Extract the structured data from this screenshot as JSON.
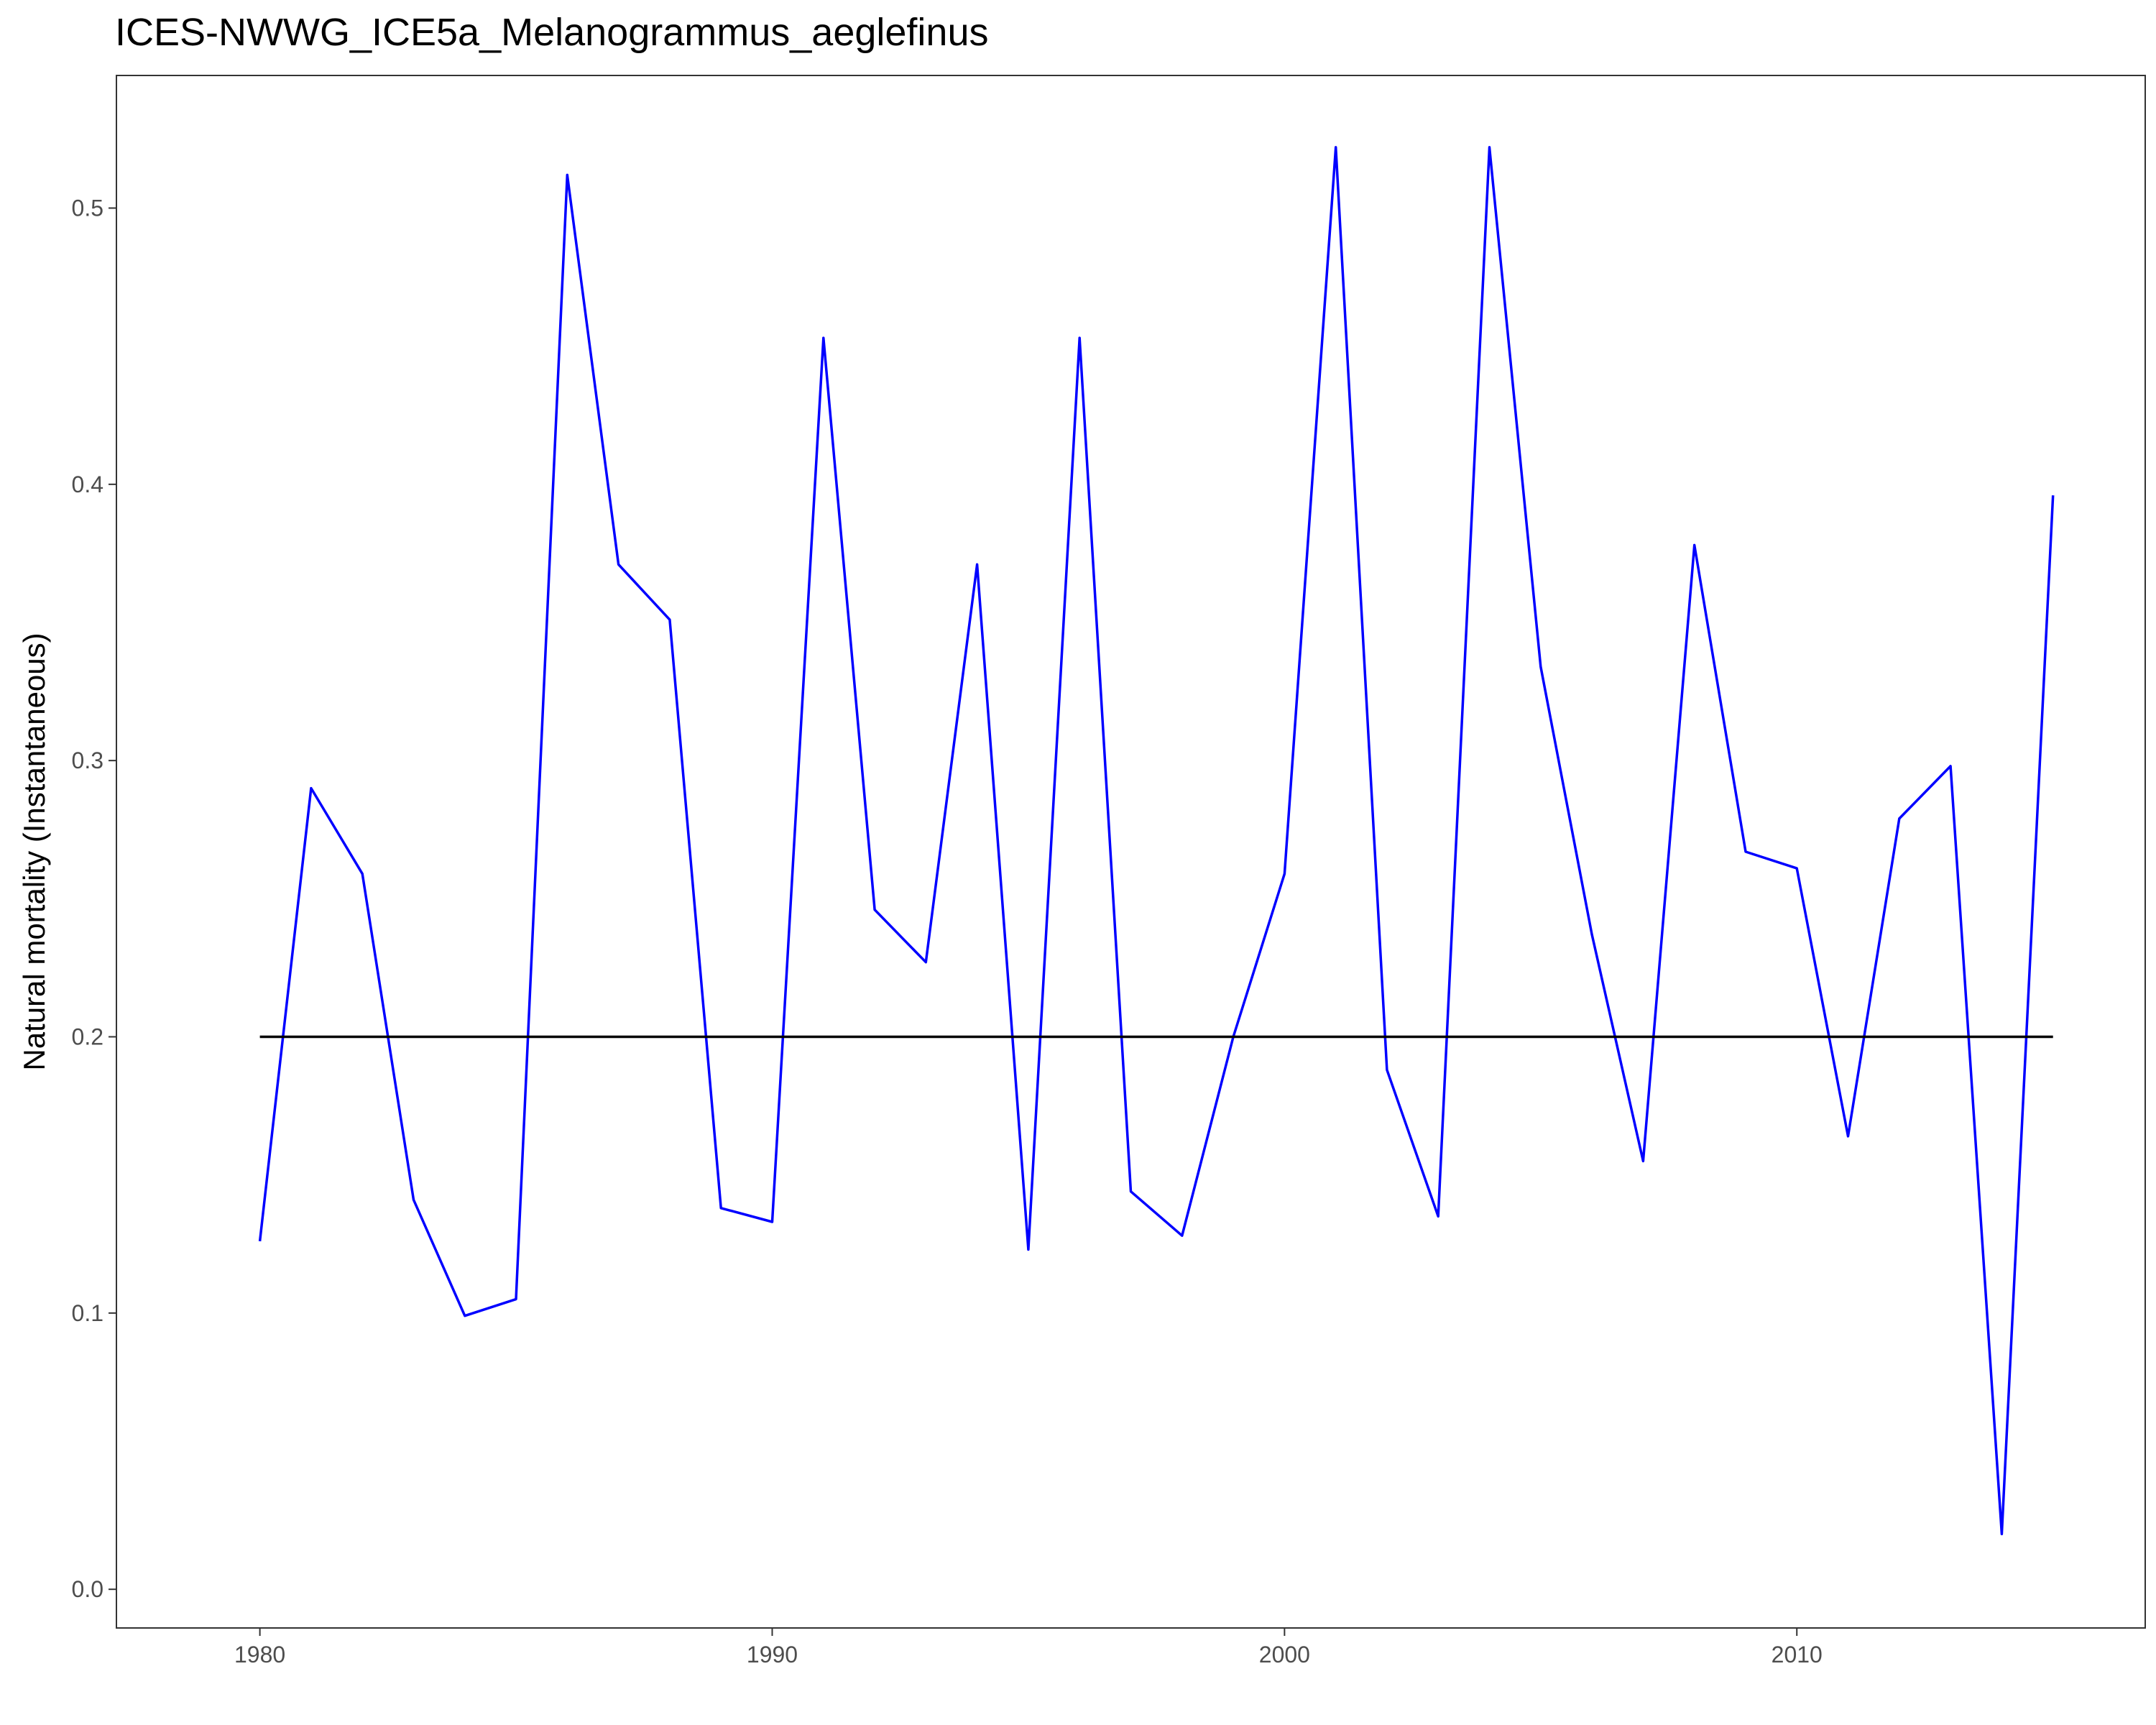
{
  "chart_data": {
    "type": "line",
    "title": "ICES-NWWG_ICE5a_Melanogrammus_aeglefinus",
    "xlabel": "",
    "ylabel": "Natural mortality (Instantaneous)",
    "xlim": [
      1977.2,
      2016.8
    ],
    "ylim": [
      -0.014,
      0.548
    ],
    "x_ticks": [
      1980,
      1990,
      2000,
      2010
    ],
    "y_ticks": [
      0.0,
      0.1,
      0.2,
      0.3,
      0.4,
      0.5
    ],
    "y_tick_labels": [
      "0.0",
      "0.1",
      "0.2",
      "0.3",
      "0.4",
      "0.5"
    ],
    "grid": false,
    "series": [
      {
        "color": "#0000ff",
        "x": [
          1980,
          1981,
          1982,
          1983,
          1984,
          1985,
          1986,
          1987,
          1988,
          1989,
          1990,
          1991,
          1992,
          1993,
          1994,
          1995,
          1996,
          1997,
          1998,
          1999,
          2000,
          2001,
          2002,
          2003,
          2004,
          2005,
          2006,
          2007,
          2008,
          2009,
          2010,
          2011,
          2012,
          2013,
          2014,
          2015
        ],
        "y": [
          0.126,
          0.29,
          0.259,
          0.141,
          0.099,
          0.105,
          0.512,
          0.371,
          0.351,
          0.138,
          0.133,
          0.453,
          0.246,
          0.227,
          0.371,
          0.123,
          0.453,
          0.144,
          0.128,
          0.2,
          0.259,
          0.522,
          0.188,
          0.135,
          0.522,
          0.334,
          0.237,
          0.155,
          0.378,
          0.267,
          0.261,
          0.164,
          0.279,
          0.298,
          0.02,
          0.396
        ]
      },
      {
        "color": "#000000",
        "x": [
          1980,
          2015
        ],
        "y": [
          0.2,
          0.2
        ]
      }
    ]
  }
}
